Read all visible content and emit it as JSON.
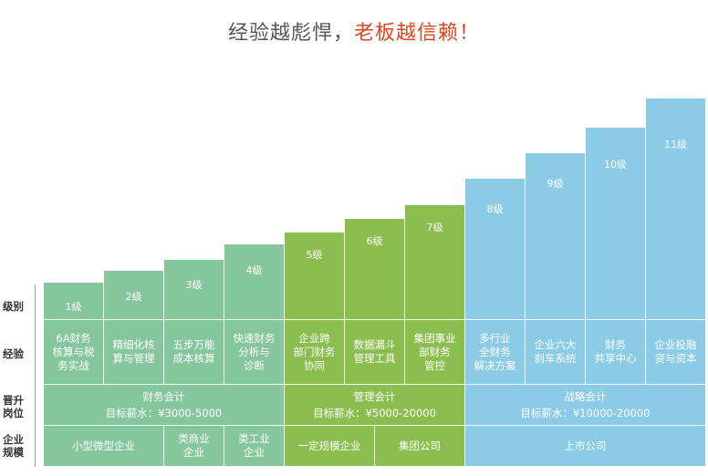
{
  "title": {
    "main": "经验越彪悍，",
    "accent": "老板越信赖！"
  },
  "row_labels": {
    "level": "级别",
    "experience": "经验",
    "promotion": "晋升\n岗位",
    "scale": "企业\n规模"
  },
  "levels": [
    {
      "level": "1级",
      "experience": "6A财务\n核算与税\n务实战"
    },
    {
      "level": "2级",
      "experience": "精细化核\n算与管理"
    },
    {
      "level": "3级",
      "experience": "五步万能\n成本核算"
    },
    {
      "level": "4级",
      "experience": "快速财务\n分析与\n诊断"
    },
    {
      "level": "5级",
      "experience": "企业跨\n部门财务\n协同"
    },
    {
      "level": "6级",
      "experience": "数据漏斗\n管理工具"
    },
    {
      "level": "7级",
      "experience": "集团事业\n部财务\n管控"
    },
    {
      "level": "8级",
      "experience": "多行业\n全财务\n解决方案"
    },
    {
      "level": "9级",
      "experience": "企业六大\n刹车系统"
    },
    {
      "level": "10级",
      "experience": "财务\n共享中心"
    },
    {
      "level": "11级",
      "experience": "企业投融\n资与资本"
    }
  ],
  "positions": [
    {
      "name": "财务会计",
      "salary": "目标薪水：¥3000-5000"
    },
    {
      "name": "管理会计",
      "salary": "目标薪水：¥5000-20000"
    },
    {
      "name": "战略会计",
      "salary": "目标薪水：¥10000-20000"
    }
  ],
  "scales": [
    "小型微型企业",
    "类商业\n企业",
    "类工业\n企业",
    "一定规模企业",
    "集团公司",
    "上市公司"
  ],
  "colors": {
    "green_light": "#86c69c",
    "green": "#8bbd4f",
    "blue": "#8ccbe6",
    "accent": "#e0461e"
  }
}
